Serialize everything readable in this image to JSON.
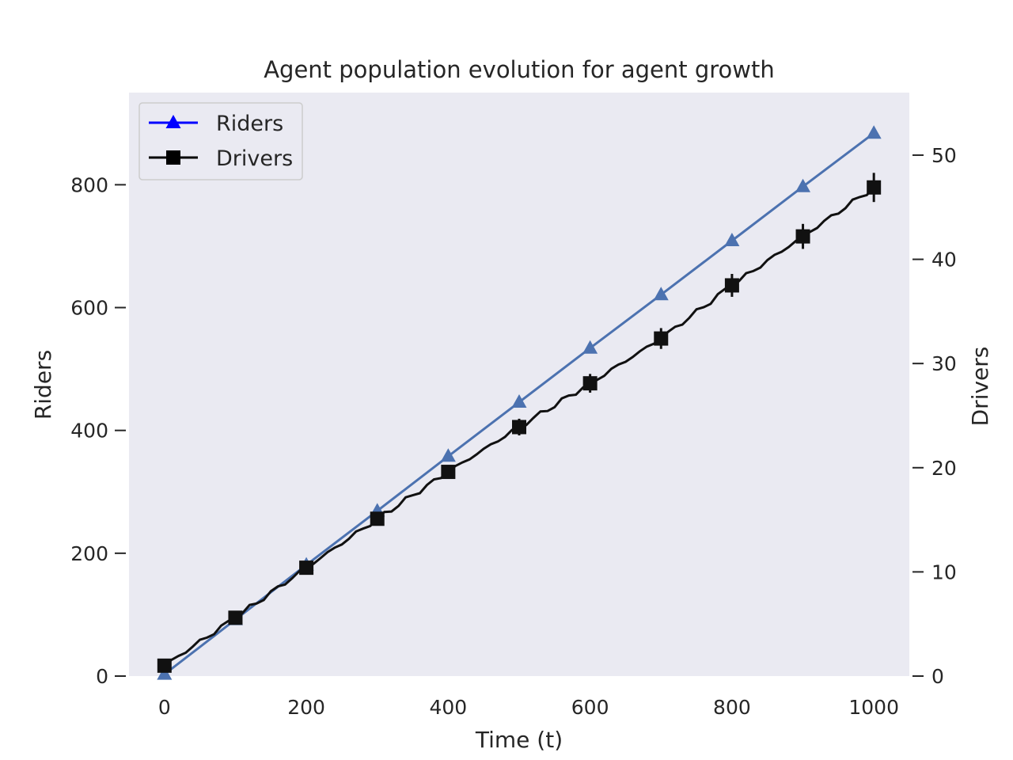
{
  "chart_data": {
    "type": "line",
    "title": "Agent population evolution for agent growth",
    "xlabel": "Time (t)",
    "ylabel_left": "Riders",
    "ylabel_right": "Drivers",
    "xlim": [
      -50,
      1050
    ],
    "ylim_left": [
      0,
      950
    ],
    "ylim_right": [
      0,
      56
    ],
    "x_ticks": [
      0,
      200,
      400,
      600,
      800,
      1000
    ],
    "y_ticks_left": [
      0,
      200,
      400,
      600,
      800
    ],
    "y_ticks_right": [
      0,
      10,
      20,
      30,
      40,
      50
    ],
    "grid": false,
    "legend_position": "top-left",
    "series": [
      {
        "name": "Riders",
        "axis": "left",
        "marker": "triangle",
        "line_color": "#4c72b0",
        "marker_color": "#4c72b0",
        "legend_color": "#0000ff",
        "x": [
          0,
          100,
          200,
          300,
          400,
          500,
          600,
          700,
          800,
          900,
          1000
        ],
        "y": [
          3,
          92,
          181,
          269,
          358,
          446,
          534,
          621,
          709,
          797,
          884
        ]
      },
      {
        "name": "Drivers",
        "axis": "right",
        "marker": "square",
        "line_color": "#111111",
        "marker_color": "#111111",
        "legend_color": "#000000",
        "x": [
          0,
          100,
          200,
          300,
          400,
          500,
          600,
          700,
          800,
          900,
          1000
        ],
        "y": [
          1.0,
          5.6,
          10.4,
          15.1,
          19.6,
          23.9,
          28.1,
          32.4,
          37.5,
          42.2,
          46.9
        ],
        "yerr": [
          0.2,
          0.3,
          0.4,
          0.5,
          0.6,
          0.8,
          0.9,
          1.0,
          1.1,
          1.2,
          1.4
        ]
      }
    ]
  }
}
